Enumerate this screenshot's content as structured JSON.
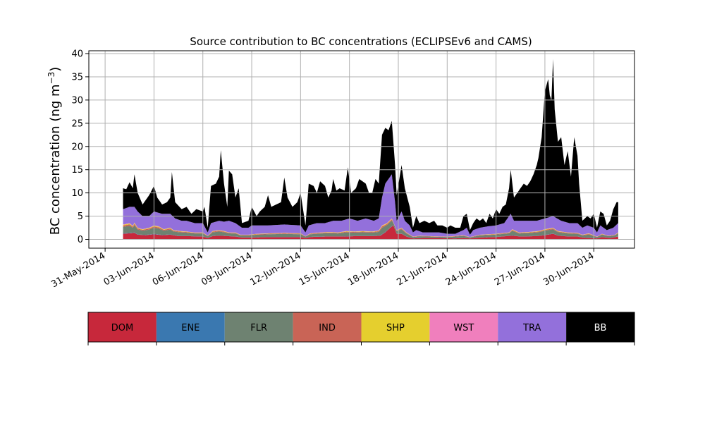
{
  "chart_data": {
    "type": "area",
    "stacked": true,
    "title": "Source contribution to BC concentrations (ECLIPSEv6 and CAMS)",
    "ylabel_main": "BC concentration (ng m",
    "ylabel_sup": "−3",
    "ylabel_close": ")",
    "xlabel": "",
    "ylim": [
      0,
      40
    ],
    "xlim": [
      -1,
      32.5
    ],
    "grid": true,
    "yticks": [
      0,
      5,
      10,
      15,
      20,
      25,
      30,
      35,
      40
    ],
    "xticks": [
      {
        "x": 0,
        "label": "31-May-2014"
      },
      {
        "x": 3,
        "label": "03-Jun-2014"
      },
      {
        "x": 6,
        "label": "06-Jun-2014"
      },
      {
        "x": 9,
        "label": "09-Jun-2014"
      },
      {
        "x": 12,
        "label": "12-Jun-2014"
      },
      {
        "x": 15,
        "label": "15-Jun-2014"
      },
      {
        "x": 18,
        "label": "18-Jun-2014"
      },
      {
        "x": 21,
        "label": "21-Jun-2014"
      },
      {
        "x": 24,
        "label": "24-Jun-2014"
      },
      {
        "x": 27,
        "label": "27-Jun-2014"
      },
      {
        "x": 30,
        "label": "30-Jun-2014"
      }
    ],
    "x_units": "days since 31-May-2014",
    "series": [
      {
        "name": "DOM",
        "color": "#c7283b"
      },
      {
        "name": "ENE",
        "color": "#3a78b0"
      },
      {
        "name": "FLR",
        "color": "#6e8271"
      },
      {
        "name": "IND",
        "color": "#c96456"
      },
      {
        "name": "SHP",
        "color": "#e5cf2e"
      },
      {
        "name": "WST",
        "color": "#f07fbd"
      },
      {
        "name": "TRA",
        "color": "#9370db"
      },
      {
        "name": "BB",
        "color": "#000000"
      }
    ],
    "total_profile": [
      [
        1.1,
        11.0
      ],
      [
        1.3,
        10.8
      ],
      [
        1.5,
        12.3
      ],
      [
        1.7,
        11.0
      ],
      [
        1.8,
        14.0
      ],
      [
        2.0,
        10.0
      ],
      [
        2.3,
        7.5
      ],
      [
        2.7,
        9.5
      ],
      [
        3.0,
        11.5
      ],
      [
        3.2,
        9.0
      ],
      [
        3.5,
        7.5
      ],
      [
        3.8,
        8.0
      ],
      [
        4.0,
        9.0
      ],
      [
        4.1,
        14.5
      ],
      [
        4.3,
        8.0
      ],
      [
        4.7,
        6.5
      ],
      [
        5.0,
        7.0
      ],
      [
        5.3,
        5.5
      ],
      [
        5.6,
        6.5
      ],
      [
        6.0,
        6.0
      ],
      [
        6.1,
        7.0
      ],
      [
        6.3,
        2.5
      ],
      [
        6.5,
        11.5
      ],
      [
        6.8,
        12.0
      ],
      [
        7.0,
        13.5
      ],
      [
        7.1,
        19.2
      ],
      [
        7.3,
        12.0
      ],
      [
        7.5,
        7.0
      ],
      [
        7.6,
        14.8
      ],
      [
        7.8,
        14.0
      ],
      [
        8.0,
        9.0
      ],
      [
        8.2,
        11.0
      ],
      [
        8.4,
        3.5
      ],
      [
        8.8,
        4.0
      ],
      [
        9.0,
        7.0
      ],
      [
        9.3,
        5.0
      ],
      [
        9.5,
        6.0
      ],
      [
        9.8,
        7.0
      ],
      [
        10.0,
        9.5
      ],
      [
        10.2,
        7.0
      ],
      [
        10.5,
        7.5
      ],
      [
        10.8,
        8.0
      ],
      [
        11.0,
        13.3
      ],
      [
        11.2,
        9.0
      ],
      [
        11.5,
        7.0
      ],
      [
        11.8,
        8.0
      ],
      [
        12.0,
        10.0
      ],
      [
        12.3,
        3.0
      ],
      [
        12.5,
        12.0
      ],
      [
        12.8,
        11.5
      ],
      [
        13.0,
        10.0
      ],
      [
        13.2,
        12.5
      ],
      [
        13.5,
        11.5
      ],
      [
        13.7,
        9.0
      ],
      [
        13.9,
        10.5
      ],
      [
        14.0,
        13.0
      ],
      [
        14.2,
        10.5
      ],
      [
        14.4,
        11.0
      ],
      [
        14.7,
        10.5
      ],
      [
        14.9,
        15.5
      ],
      [
        15.1,
        10.0
      ],
      [
        15.4,
        11.0
      ],
      [
        15.6,
        13.0
      ],
      [
        15.8,
        12.5
      ],
      [
        16.0,
        12.0
      ],
      [
        16.2,
        10.0
      ],
      [
        16.4,
        10.0
      ],
      [
        16.6,
        13.0
      ],
      [
        16.8,
        12.0
      ],
      [
        17.0,
        22.5
      ],
      [
        17.2,
        24.0
      ],
      [
        17.4,
        23.5
      ],
      [
        17.6,
        25.5
      ],
      [
        17.8,
        16.0
      ],
      [
        17.9,
        9.5
      ],
      [
        18.2,
        16.0
      ],
      [
        18.4,
        11.0
      ],
      [
        18.7,
        7.0
      ],
      [
        18.9,
        2.5
      ],
      [
        19.1,
        5.0
      ],
      [
        19.3,
        3.5
      ],
      [
        19.6,
        4.0
      ],
      [
        19.9,
        3.5
      ],
      [
        20.2,
        4.0
      ],
      [
        20.4,
        3.0
      ],
      [
        20.7,
        3.0
      ],
      [
        21.0,
        2.5
      ],
      [
        21.2,
        3.0
      ],
      [
        21.5,
        2.5
      ],
      [
        21.8,
        2.5
      ],
      [
        22.0,
        5.0
      ],
      [
        22.2,
        5.5
      ],
      [
        22.4,
        2.0
      ],
      [
        22.6,
        3.5
      ],
      [
        22.8,
        4.5
      ],
      [
        23.0,
        4.0
      ],
      [
        23.2,
        4.5
      ],
      [
        23.4,
        3.5
      ],
      [
        23.6,
        5.5
      ],
      [
        23.8,
        4.5
      ],
      [
        24.0,
        6.5
      ],
      [
        24.2,
        5.5
      ],
      [
        24.4,
        7.0
      ],
      [
        24.6,
        7.5
      ],
      [
        24.8,
        11.0
      ],
      [
        24.9,
        15.0
      ],
      [
        25.1,
        9.0
      ],
      [
        25.3,
        10.0
      ],
      [
        25.5,
        11.0
      ],
      [
        25.7,
        12.0
      ],
      [
        25.9,
        11.5
      ],
      [
        26.1,
        12.5
      ],
      [
        26.3,
        14.0
      ],
      [
        26.5,
        16.0
      ],
      [
        26.6,
        17.5
      ],
      [
        26.8,
        22.0
      ],
      [
        26.9,
        27.0
      ],
      [
        27.0,
        32.0
      ],
      [
        27.2,
        34.5
      ],
      [
        27.3,
        31.0
      ],
      [
        27.4,
        30.0
      ],
      [
        27.5,
        38.8
      ],
      [
        27.6,
        28.0
      ],
      [
        27.8,
        21.0
      ],
      [
        28.0,
        22.0
      ],
      [
        28.2,
        16.0
      ],
      [
        28.4,
        19.0
      ],
      [
        28.6,
        13.5
      ],
      [
        28.8,
        22.0
      ],
      [
        29.0,
        18.0
      ],
      [
        29.1,
        12.0
      ],
      [
        29.3,
        4.0
      ],
      [
        29.6,
        5.0
      ],
      [
        29.8,
        4.5
      ],
      [
        30.0,
        5.5
      ],
      [
        30.2,
        2.5
      ],
      [
        30.4,
        6.0
      ],
      [
        30.6,
        5.5
      ],
      [
        30.8,
        3.0
      ],
      [
        31.0,
        4.0
      ],
      [
        31.2,
        6.5
      ],
      [
        31.4,
        8.0
      ],
      [
        31.5,
        8.0
      ]
    ],
    "tra_profile": [
      [
        1.1,
        6.5
      ],
      [
        1.5,
        7.0
      ],
      [
        1.8,
        7.0
      ],
      [
        2.0,
        6.0
      ],
      [
        2.3,
        5.0
      ],
      [
        2.7,
        5.0
      ],
      [
        3.0,
        6.0
      ],
      [
        3.5,
        5.5
      ],
      [
        4.0,
        5.5
      ],
      [
        4.3,
        4.5
      ],
      [
        4.7,
        4.0
      ],
      [
        5.0,
        4.0
      ],
      [
        5.5,
        3.5
      ],
      [
        6.0,
        3.5
      ],
      [
        6.3,
        1.5
      ],
      [
        6.5,
        3.5
      ],
      [
        7.0,
        4.0
      ],
      [
        7.3,
        3.8
      ],
      [
        7.6,
        4.0
      ],
      [
        8.0,
        3.5
      ],
      [
        8.4,
        2.5
      ],
      [
        8.8,
        2.5
      ],
      [
        9.0,
        3.0
      ],
      [
        9.5,
        3.0
      ],
      [
        10.0,
        3.0
      ],
      [
        11.0,
        3.2
      ],
      [
        12.0,
        3.0
      ],
      [
        12.3,
        1.5
      ],
      [
        12.5,
        3.0
      ],
      [
        13.0,
        3.5
      ],
      [
        13.5,
        3.5
      ],
      [
        14.0,
        4.0
      ],
      [
        14.5,
        4.0
      ],
      [
        15.0,
        4.5
      ],
      [
        15.5,
        4.0
      ],
      [
        16.0,
        4.5
      ],
      [
        16.5,
        4.0
      ],
      [
        16.8,
        4.5
      ],
      [
        17.0,
        9.0
      ],
      [
        17.2,
        12.0
      ],
      [
        17.4,
        13.0
      ],
      [
        17.6,
        14.0
      ],
      [
        17.8,
        8.0
      ],
      [
        17.9,
        4.0
      ],
      [
        18.2,
        6.0
      ],
      [
        18.4,
        4.0
      ],
      [
        18.7,
        3.0
      ],
      [
        18.9,
        1.5
      ],
      [
        19.1,
        2.0
      ],
      [
        19.5,
        1.5
      ],
      [
        20.0,
        1.5
      ],
      [
        20.5,
        1.5
      ],
      [
        21.0,
        1.2
      ],
      [
        21.5,
        1.2
      ],
      [
        22.0,
        2.0
      ],
      [
        22.2,
        2.5
      ],
      [
        22.4,
        1.0
      ],
      [
        22.6,
        2.0
      ],
      [
        23.0,
        2.5
      ],
      [
        23.5,
        2.8
      ],
      [
        24.0,
        3.0
      ],
      [
        24.5,
        3.5
      ],
      [
        24.9,
        5.5
      ],
      [
        25.1,
        4.0
      ],
      [
        25.5,
        4.0
      ],
      [
        26.0,
        4.0
      ],
      [
        26.5,
        4.0
      ],
      [
        27.0,
        4.5
      ],
      [
        27.5,
        5.0
      ],
      [
        28.0,
        4.0
      ],
      [
        28.5,
        3.5
      ],
      [
        29.0,
        3.5
      ],
      [
        29.3,
        2.5
      ],
      [
        29.6,
        3.0
      ],
      [
        30.0,
        2.5
      ],
      [
        30.2,
        1.5
      ],
      [
        30.4,
        3.0
      ],
      [
        30.8,
        2.0
      ],
      [
        31.2,
        2.5
      ],
      [
        31.5,
        3.5
      ]
    ],
    "low_profile": [
      [
        1.1,
        3.2
      ],
      [
        1.5,
        3.5
      ],
      [
        1.7,
        2.9
      ],
      [
        1.8,
        3.6
      ],
      [
        2.0,
        2.5
      ],
      [
        2.3,
        2.2
      ],
      [
        2.7,
        2.5
      ],
      [
        3.0,
        3.0
      ],
      [
        3.3,
        2.8
      ],
      [
        3.6,
        2.2
      ],
      [
        4.0,
        2.5
      ],
      [
        4.2,
        2.0
      ],
      [
        4.6,
        1.8
      ],
      [
        5.0,
        1.7
      ],
      [
        5.5,
        1.5
      ],
      [
        6.0,
        1.5
      ],
      [
        6.3,
        0.8
      ],
      [
        6.6,
        1.8
      ],
      [
        7.0,
        2.0
      ],
      [
        7.3,
        1.8
      ],
      [
        7.6,
        1.5
      ],
      [
        8.0,
        1.5
      ],
      [
        8.3,
        1.0
      ],
      [
        8.8,
        1.0
      ],
      [
        9.3,
        1.2
      ],
      [
        10.0,
        1.3
      ],
      [
        11.0,
        1.4
      ],
      [
        12.0,
        1.3
      ],
      [
        12.3,
        0.7
      ],
      [
        12.6,
        1.3
      ],
      [
        13.2,
        1.5
      ],
      [
        13.8,
        1.6
      ],
      [
        14.3,
        1.5
      ],
      [
        14.8,
        1.8
      ],
      [
        15.3,
        1.7
      ],
      [
        15.8,
        1.8
      ],
      [
        16.4,
        1.7
      ],
      [
        16.8,
        1.9
      ],
      [
        17.0,
        3.0
      ],
      [
        17.3,
        3.5
      ],
      [
        17.6,
        4.5
      ],
      [
        17.9,
        2.0
      ],
      [
        18.2,
        2.5
      ],
      [
        18.5,
        1.5
      ],
      [
        18.9,
        0.6
      ],
      [
        19.3,
        0.8
      ],
      [
        20.0,
        0.7
      ],
      [
        21.0,
        0.6
      ],
      [
        22.0,
        0.9
      ],
      [
        22.4,
        0.5
      ],
      [
        23.0,
        1.0
      ],
      [
        24.0,
        1.2
      ],
      [
        24.8,
        1.5
      ],
      [
        25.0,
        2.2
      ],
      [
        25.4,
        1.5
      ],
      [
        26.0,
        1.6
      ],
      [
        26.6,
        1.8
      ],
      [
        27.0,
        2.2
      ],
      [
        27.5,
        2.5
      ],
      [
        27.8,
        1.8
      ],
      [
        28.4,
        1.5
      ],
      [
        29.0,
        1.4
      ],
      [
        29.3,
        1.0
      ],
      [
        29.7,
        1.3
      ],
      [
        30.2,
        0.6
      ],
      [
        30.5,
        1.2
      ],
      [
        30.9,
        0.8
      ],
      [
        31.3,
        1.0
      ],
      [
        31.5,
        1.5
      ]
    ],
    "dom_profile": [
      [
        1.1,
        1.2
      ],
      [
        1.5,
        1.3
      ],
      [
        1.8,
        1.4
      ],
      [
        2.0,
        1.0
      ],
      [
        2.5,
        0.9
      ],
      [
        3.0,
        1.1
      ],
      [
        3.5,
        0.9
      ],
      [
        4.0,
        1.0
      ],
      [
        4.5,
        0.7
      ],
      [
        5.0,
        0.7
      ],
      [
        6.0,
        0.6
      ],
      [
        6.3,
        0.3
      ],
      [
        6.6,
        0.7
      ],
      [
        7.0,
        0.8
      ],
      [
        7.5,
        0.7
      ],
      [
        8.0,
        0.6
      ],
      [
        8.4,
        0.4
      ],
      [
        9.0,
        0.4
      ],
      [
        10.0,
        0.5
      ],
      [
        11.0,
        0.5
      ],
      [
        12.0,
        0.5
      ],
      [
        12.3,
        0.3
      ],
      [
        12.6,
        0.5
      ],
      [
        13.5,
        0.6
      ],
      [
        14.5,
        0.6
      ],
      [
        15.5,
        0.7
      ],
      [
        16.5,
        0.7
      ],
      [
        16.9,
        0.8
      ],
      [
        17.2,
        1.5
      ],
      [
        17.5,
        2.5
      ],
      [
        17.7,
        3.0
      ],
      [
        17.9,
        1.2
      ],
      [
        18.2,
        1.2
      ],
      [
        18.5,
        0.6
      ],
      [
        18.9,
        0.2
      ],
      [
        19.5,
        0.3
      ],
      [
        20.5,
        0.3
      ],
      [
        21.5,
        0.2
      ],
      [
        22.0,
        0.3
      ],
      [
        22.4,
        0.2
      ],
      [
        23.0,
        0.4
      ],
      [
        24.0,
        0.5
      ],
      [
        25.0,
        0.8
      ],
      [
        25.5,
        0.6
      ],
      [
        26.5,
        0.7
      ],
      [
        27.0,
        0.9
      ],
      [
        27.5,
        1.2
      ],
      [
        27.8,
        0.8
      ],
      [
        28.5,
        0.6
      ],
      [
        29.0,
        0.6
      ],
      [
        29.3,
        0.4
      ],
      [
        30.2,
        0.2
      ],
      [
        30.5,
        0.5
      ],
      [
        31.0,
        0.3
      ],
      [
        31.5,
        0.6
      ]
    ]
  }
}
